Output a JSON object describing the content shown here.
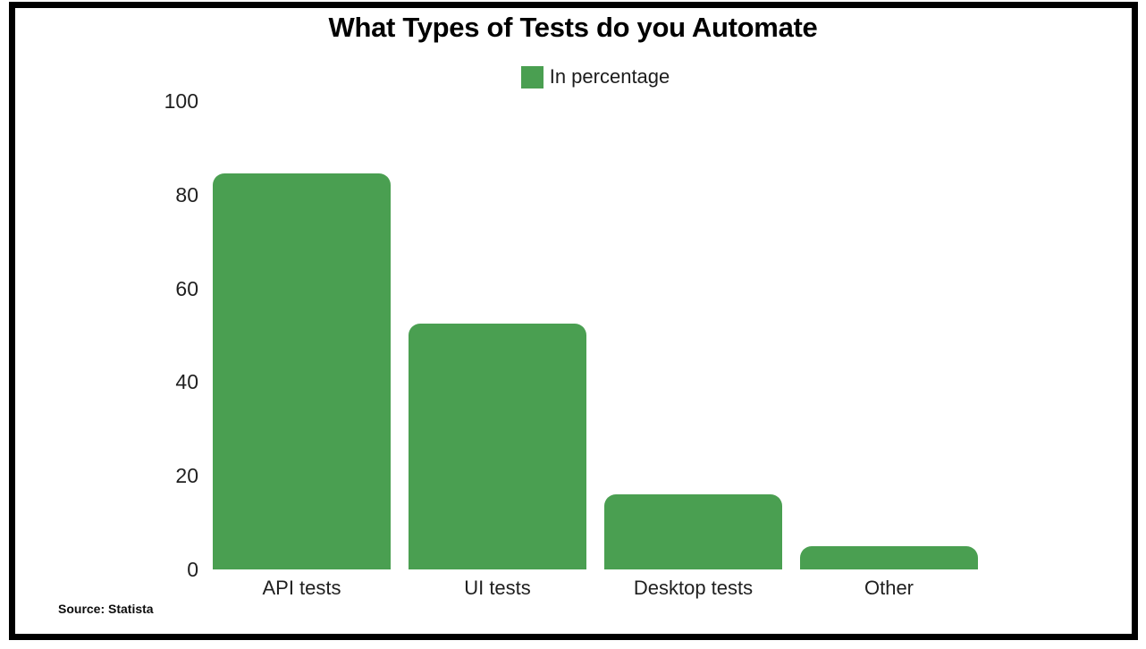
{
  "frame": {
    "border_color": "#000000",
    "background_color": "#ffffff"
  },
  "chart_data": {
    "type": "bar",
    "title": "What Types of Tests do you Automate",
    "legend": {
      "label": "In percentage",
      "swatch_color": "#4a9f51",
      "position": "top-center"
    },
    "categories": [
      "API tests",
      "UI tests",
      "Desktop tests",
      "Other"
    ],
    "values": [
      84.5,
      52.5,
      16,
      5
    ],
    "xlabel": "",
    "ylabel": "",
    "ylim": [
      0,
      100
    ],
    "yticks": [
      0,
      20,
      40,
      60,
      80,
      100
    ],
    "grid": false,
    "bar_color": "#4a9f51",
    "text_color": "#1f1f1f",
    "source": "Source: Statista"
  }
}
